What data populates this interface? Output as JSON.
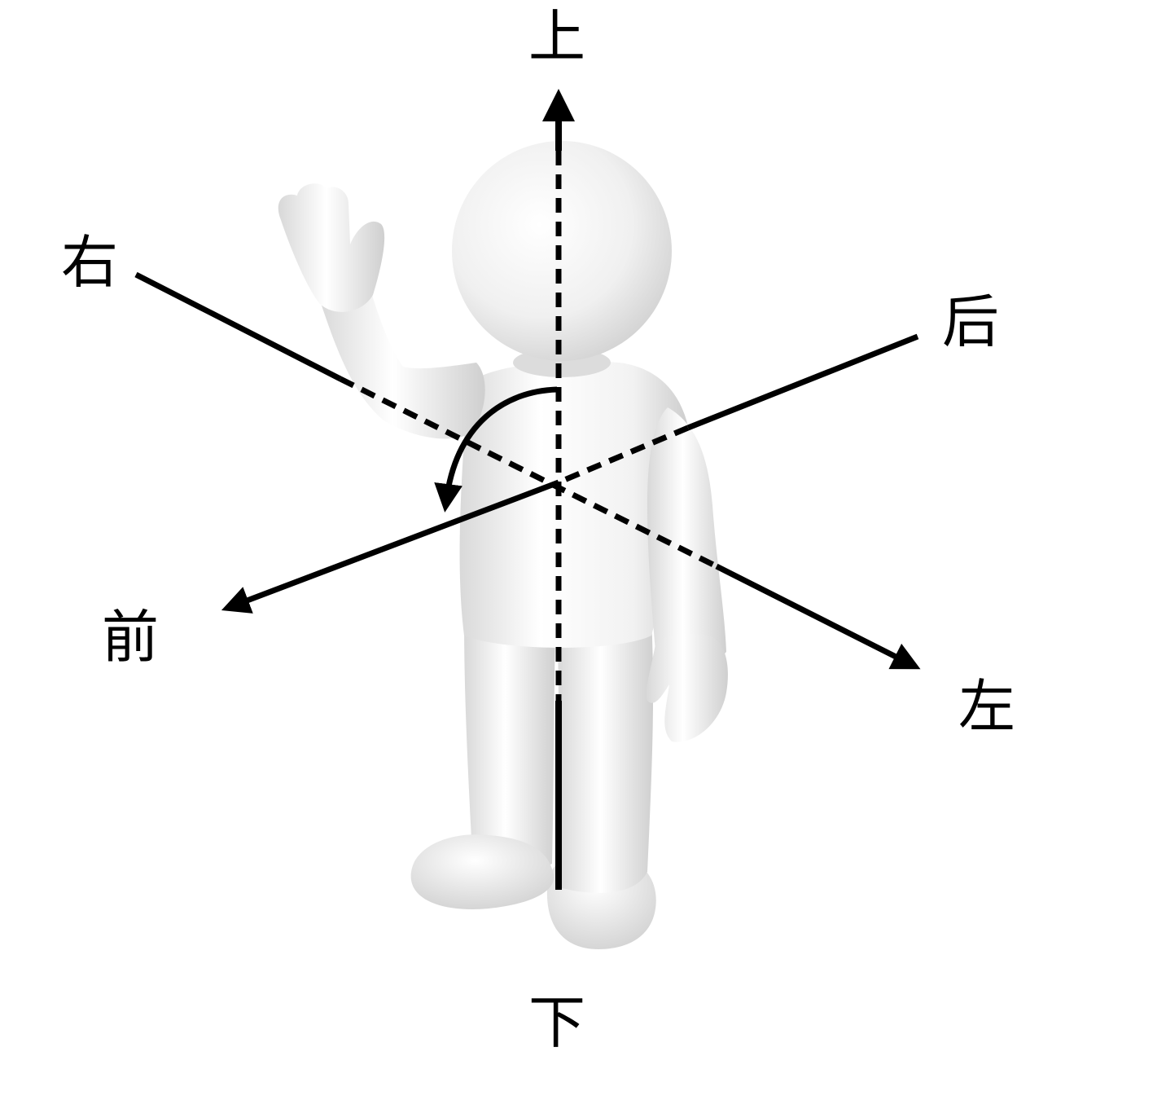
{
  "labels": {
    "up": "上",
    "down": "下",
    "right": "右",
    "left": "左",
    "front": "前",
    "back": "后"
  },
  "colors": {
    "figure": "#f2f2f2",
    "figure_shade": "#d4d4d4",
    "lines": "#000000",
    "background": "#ffffff"
  },
  "icons": {
    "figure": "3d-person-figure-waving-icon"
  }
}
